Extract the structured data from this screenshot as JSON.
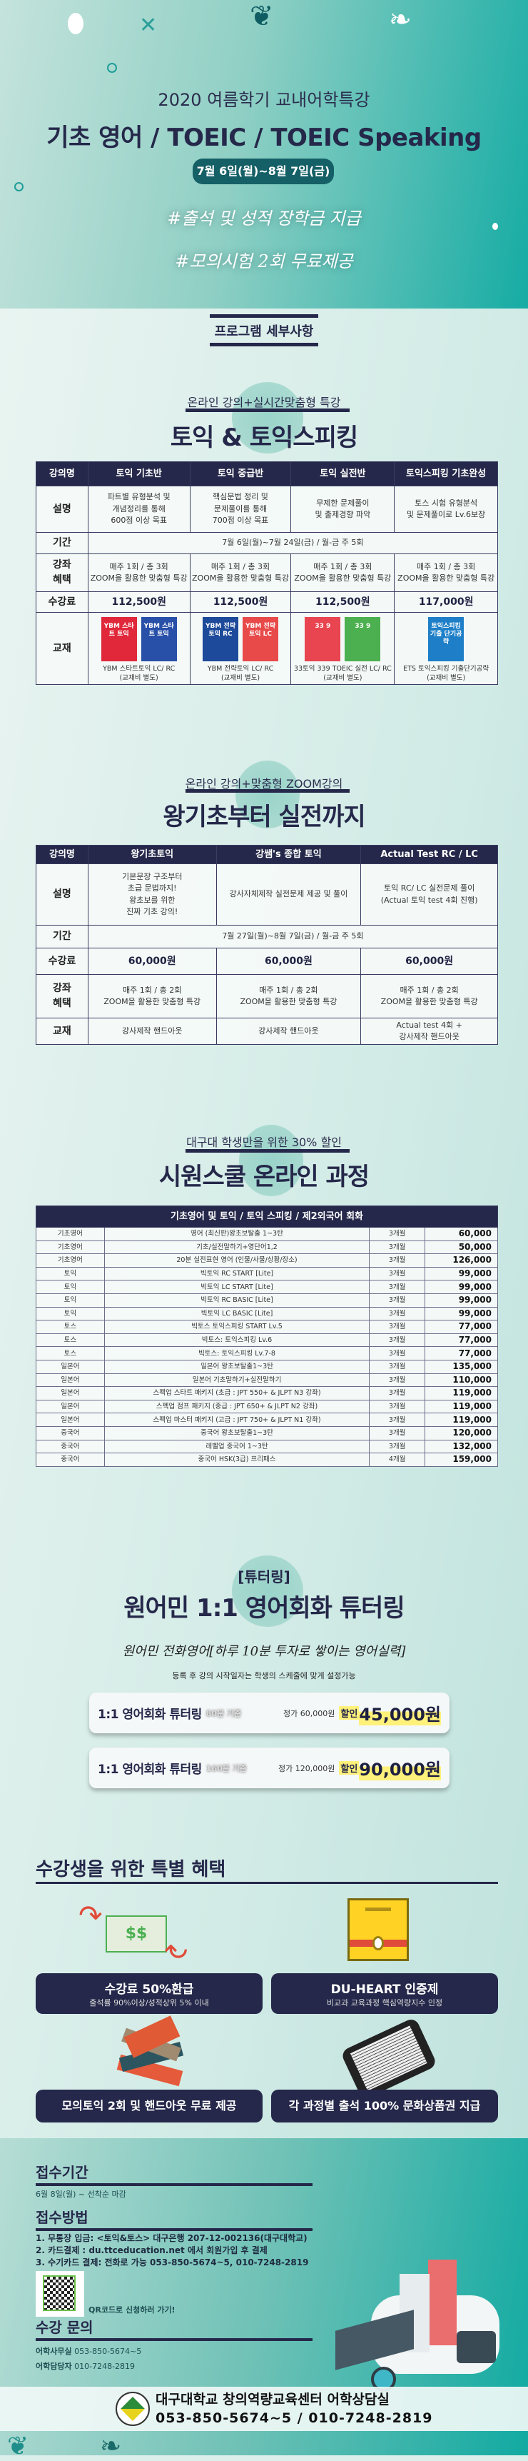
{
  "hero": {
    "subtitle": "2020 여름학기 교내어학특강",
    "title": "기초 영어 / TOEIC / TOEIC Speaking",
    "date": "7월 6일(월)~8월 7일(금)",
    "tag1": "#출석 및 성적 장학금 지급",
    "tag2": "#모의시험 2회 무료제공"
  },
  "program_heading": "프로그램 세부사항",
  "section1": {
    "subtitle": "온라인 강의+실시간맞춤형 특강",
    "title": "토익 & 토익스피킹",
    "headers": [
      "강의명",
      "토익 기초반",
      "토익 중급반",
      "토익 실전반",
      "토익스피킹 기초완성"
    ],
    "rows": [
      {
        "label": "설명",
        "cells": [
          "파트별 유형분석 및\n개념정리를 통해\n600점 이상 목표",
          "핵심문법 정리 및\n문제풀이를 통해\n700점 이상 목표",
          "무제한 문제풀이\n및 출제경향 파악",
          "토스 시험 유형분석\n및 문제풀이로 Lv.6보장"
        ]
      },
      {
        "label": "기간",
        "span": "7월 6일(월)~7월 24일(금) / 월-금  주 5회"
      },
      {
        "label": "강좌\n혜택",
        "cells": [
          "매주 1회 / 총 3회\nZOOM을 활용한 맞춤형 특강",
          "매주 1회 / 총 3회\nZOOM을 활용한 맞춤형 특강",
          "매주 1회 / 총 3회\nZOOM을 활용한 맞춤형 특강",
          "매주 1회 / 총 3회\nZOOM을 활용한 맞춤형 특강"
        ]
      },
      {
        "label": "수강료",
        "price": true,
        "cells": [
          "112,500원",
          "112,500원",
          "112,500원",
          "117,000원"
        ]
      }
    ],
    "textbook_label": "교재",
    "textbooks": [
      {
        "covers": [
          {
            "text": "YBM 스타트 토익",
            "color": "#e0283a"
          },
          {
            "text": "YBM 스타트 토익",
            "color": "#2850a8"
          }
        ],
        "caption": "YBM 스타트토익 LC/ RC\n(교재비 별도)"
      },
      {
        "covers": [
          {
            "text": "YBM 전략토익 RC",
            "color": "#1d4a9a"
          },
          {
            "text": "YBM 전략토익 LC",
            "color": "#e84a4a"
          }
        ],
        "caption": "YBM 전략토익 LC/ RC\n(교재비 별도)"
      },
      {
        "covers": [
          {
            "text": "33 9",
            "color": "#e84550"
          },
          {
            "text": "33 9",
            "color": "#4caf50"
          }
        ],
        "caption": "33토익 339 TOEIC 실전 LC/ RC\n(교재비 별도)"
      },
      {
        "covers": [
          {
            "text": "토익스피킹 기출 단기공략",
            "color": "#1e7fc8"
          }
        ],
        "caption": "ETS 토익스피킹 기출단기공략\n(교재비 별도)"
      }
    ]
  },
  "section2": {
    "subtitle": "온라인 강의+맞춤형 ZOOM강의",
    "title": "왕기초부터 실전까지",
    "headers": [
      "강의명",
      "왕기초토익",
      "강쌤's 종합 토익",
      "Actual Test RC / LC"
    ],
    "rows": [
      {
        "label": "설명",
        "cells": [
          "기본문장 구조부터\n초급 문법까지!\n왕초보를 위한\n진짜 기초 강의!",
          "강사자체제작 실전문제 제공 및 풀이",
          "토익 RC/ LC 실전문제 풀이\n(Actual 토익 test 4회 진행)"
        ]
      },
      {
        "label": "기간",
        "span": "7월 27일(월)~8월 7일(금) / 월-금  주 5회"
      },
      {
        "label": "수강료",
        "price": true,
        "cells": [
          "60,000원",
          "60,000원",
          "60,000원"
        ]
      },
      {
        "label": "강좌\n혜택",
        "cells": [
          "매주 1회 / 총 2회\nZOOM을 활용한 맞춤형 특강",
          "매주 1회 / 총 2회\nZOOM을 활용한 맞춤형 특강",
          "매주 1회 / 총 2회\nZOOM을 활용한 맞춤형 특강"
        ]
      },
      {
        "label": "교재",
        "cells": [
          "강사제작 핸드아웃",
          "강사제작 핸드아웃",
          "Actual test 4회 +\n강사제작 핸드아웃"
        ]
      }
    ]
  },
  "section3": {
    "subtitle": "대구대 학생만을 위한 30% 할인",
    "title": "시원스쿨 온라인 과정",
    "header": "기초영어 및 토익 / 토익 스피킹 / 제2외국어 회화",
    "rows": [
      [
        "기초영어",
        "영어 (최신판)왕초보탈출 1~3탄",
        "3개월",
        "60,000"
      ],
      [
        "기초영어",
        "기초/실전말하기+영단어1,2",
        "3개월",
        "50,000"
      ],
      [
        "기초영어",
        "20분 실전표현 영어 (인물/사물/상황/장소)",
        "3개월",
        "126,000"
      ],
      [
        "토익",
        "빅토익 RC START [Lite]",
        "3개월",
        "99,000"
      ],
      [
        "토익",
        "빅토익 LC START [Lite]",
        "3개월",
        "99,000"
      ],
      [
        "토익",
        "빅토익 RC BASIC [Lite]",
        "3개월",
        "99,000"
      ],
      [
        "토익",
        "빅토익 LC BASIC [Lite]",
        "3개월",
        "99,000"
      ],
      [
        "토스",
        "빅토스 토익스피킹 START Lv.5",
        "3개월",
        "77,000"
      ],
      [
        "토스",
        "빅토스: 토익스피킹 Lv.6",
        "3개월",
        "77,000"
      ],
      [
        "토스",
        "빅토스: 토익스피킹 Lv.7-8",
        "3개월",
        "77,000"
      ],
      [
        "일본어",
        "일본어 왕초보탈출1~3탄",
        "3개월",
        "135,000"
      ],
      [
        "일본어",
        "일본어 기초말하기+실전말하기",
        "3개월",
        "110,000"
      ],
      [
        "일본어",
        "스펙업 스타트 패키지 (초급 : JPT 550+ & JLPT N3 강좌)",
        "3개월",
        "119,000"
      ],
      [
        "일본어",
        "스펙업 점프 패키지 (중급 : JPT 650+ & JLPT N2 강좌)",
        "3개월",
        "119,000"
      ],
      [
        "일본어",
        "스펙업 마스터 패키지 (고급 : JPT 750+ & JLPT N1 강좌)",
        "3개월",
        "119,000"
      ],
      [
        "중국어",
        "중국어 왕초보탈출1~3탄",
        "3개월",
        "120,000"
      ],
      [
        "중국어",
        "레벨업 중국어 1~3탄",
        "3개월",
        "132,000"
      ],
      [
        "중국어",
        "중국어 HSK(3급) 프리패스",
        "4개월",
        "159,000"
      ]
    ]
  },
  "tutoring": {
    "tag": "[튜터링]",
    "title": "원어민 1:1 영어회화 튜터링",
    "handwritten": "원어민 전화영어[하루 10분 투자로 쌓이는 영어실력]",
    "note": "등록 후 강의 시작일자는 학생의 스케줄에 맞게 설정가능",
    "cards": [
      {
        "name": "1:1 영어회화 튜터링",
        "basis": "80분 기준",
        "original": "정가 60,000원",
        "discount_label": "할인",
        "price": "45,000원"
      },
      {
        "name": "1:1 영어회화 튜터링",
        "basis": "160분 기준",
        "original": "정가 120,000원",
        "discount_label": "할인",
        "price": "90,000원"
      }
    ]
  },
  "benefits": {
    "title": "수강생을 위한 특별 혜택",
    "items": [
      {
        "title": "수강료 50%환급",
        "desc": "출석률 90%이상/성적상위 5% 이내",
        "icon": "money-refund-icon"
      },
      {
        "title": "DU-HEART 인증제",
        "desc": "비교과 교육과정 핵심역량지수 인정",
        "icon": "certificate-icon"
      },
      {
        "title": "모의토익 2회 및 핸드아웃 무료 제공",
        "desc": "",
        "icon": "books-icon"
      },
      {
        "title": "각 과정별 출석 100% 문화상품권 지급",
        "desc": "",
        "icon": "tablet-icon"
      }
    ],
    "money_symbol": "$$"
  },
  "footer": {
    "period_heading": "접수기간",
    "period": "6월 8일(월) ~ 선착순 마감",
    "method_heading": "접수방법",
    "methods": [
      "1. 무통장 입금: <토익&토스> 대구은행 207-12-002136(대구대학교)",
      "2. 카드결제 : du.ttceducation.net 에서 회원가입 후 결제",
      "3. 수기카드 결제: 전화로 가능 053-850-5674~5, 010-7248-2819"
    ],
    "qr_caption": "QR코드로 신청하러 가기!",
    "contact_heading": "수강 문의",
    "contacts": [
      {
        "label": "어학사무실",
        "value": "053-850-5674~5"
      },
      {
        "label": "어학담당자",
        "value": "010-7248-2819"
      }
    ],
    "banner_title": "대구대학교 창의역량교육센터 어학상담실",
    "banner_phone": "053-850-5674~5 / 010-7248-2819",
    "logo_text": "대구대학교 DAEGU UNIVERSITY"
  },
  "colors": {
    "navy": "#25284a",
    "teal": "#11aaa2",
    "highlight": "#fff17a"
  }
}
